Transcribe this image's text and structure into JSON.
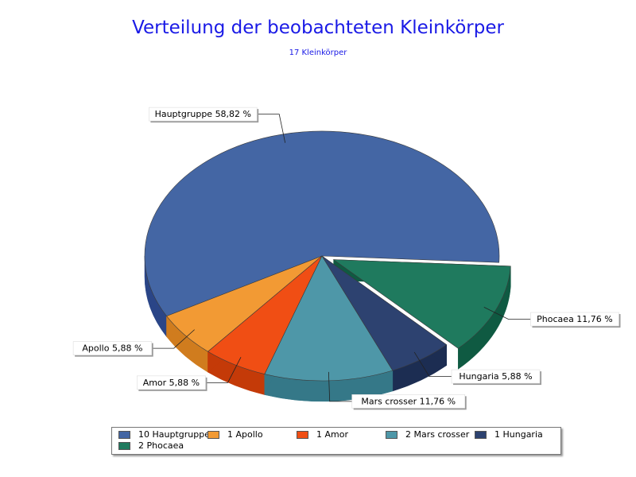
{
  "title": "Verteilung der beobachteten Kleinkörper",
  "subtitle": "17 Kleinkörper",
  "chart_data": {
    "type": "pie",
    "title": "Verteilung der beobachteten Kleinkörper",
    "subtitle": "17 Kleinkörper",
    "three_d": true,
    "slices": [
      {
        "name": "Hauptgruppe",
        "count": 10,
        "percent": 58.82,
        "label": "Hauptgruppe 58,82 %",
        "legend": "10 Hauptgruppe",
        "color": "#4466a4",
        "side": "#2a4587",
        "exploded": false
      },
      {
        "name": "Apollo",
        "count": 1,
        "percent": 5.88,
        "label": "Apollo 5,88 %",
        "legend": "1 Apollo",
        "color": "#f29a34",
        "side": "#d07c1e",
        "exploded": false
      },
      {
        "name": "Amor",
        "count": 1,
        "percent": 5.88,
        "label": "Amor 5,88 %",
        "legend": "1 Amor",
        "color": "#f04e14",
        "side": "#c43a08",
        "exploded": false
      },
      {
        "name": "Mars crosser",
        "count": 2,
        "percent": 11.76,
        "label": "Mars crosser 11,76 %",
        "legend": "2 Mars crosser",
        "color": "#4e97a8",
        "side": "#357888",
        "exploded": false
      },
      {
        "name": "Hungaria",
        "count": 1,
        "percent": 5.88,
        "label": "Hungaria 5,88 %",
        "legend": "1 Hungaria",
        "color": "#2d4270",
        "side": "#1c2d52",
        "exploded": false
      },
      {
        "name": "Phocaea",
        "count": 2,
        "percent": 11.76,
        "label": "Phocaea 11,76 %",
        "legend": "2 Phocaea",
        "color": "#1f7a5e",
        "side": "#0f5a42",
        "exploded": true
      }
    ],
    "legend_placement": "bottom"
  }
}
